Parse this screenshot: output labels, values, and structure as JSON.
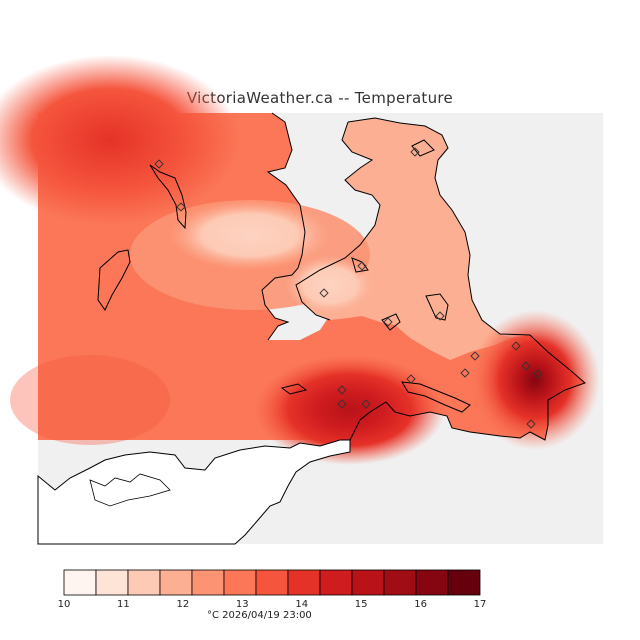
{
  "title": "VictoriaWeather.ca -- Temperature",
  "legend": {
    "colors": [
      "#fff5f0",
      "#fee3d7",
      "#fdcab5",
      "#fcaf93",
      "#fc9474",
      "#fb7757",
      "#f5553d",
      "#e53228",
      "#cf1c1f",
      "#b91319",
      "#a10d15",
      "#850510",
      "#67000d"
    ],
    "ticks": [
      "10",
      "11",
      "12",
      "13",
      "14",
      "15",
      "16",
      "17"
    ]
  },
  "footer": "°C  2026/04/19 23:00",
  "colors": {
    "sea": "#f0f0f0",
    "land": "#ffffff",
    "coast": "#000000"
  },
  "station_marker_icon": "diamond-icon",
  "station_count": 17
}
